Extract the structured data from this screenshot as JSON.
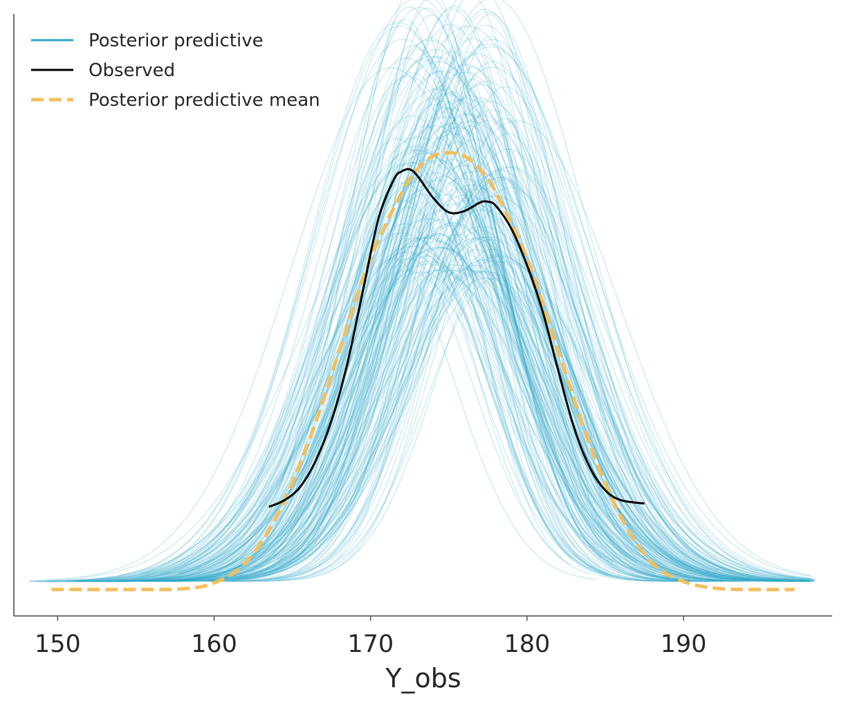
{
  "chart_data": {
    "type": "line",
    "xlabel": "Y_obs",
    "ylabel": "",
    "xlim": [
      147.2,
      199.5
    ],
    "ylim": [
      -0.004,
      0.087
    ],
    "x_ticks": [
      150,
      160,
      170,
      180,
      190
    ],
    "x_tick_labels": [
      "150",
      "160",
      "170",
      "180",
      "190"
    ],
    "y_ticks_shown": false,
    "grid": false,
    "legend_position": "top-left",
    "colors": {
      "posterior_predictive": "#2aa6c6",
      "observed": "#000000",
      "posterior_predictive_mean": "#f5bf5a",
      "axis": "#4a4a4a"
    },
    "legend": [
      {
        "name": "Posterior predictive",
        "style": "solid",
        "color": "#2aa6c6"
      },
      {
        "name": "Observed",
        "style": "solid",
        "color": "#000000"
      },
      {
        "name": "Posterior predictive mean",
        "style": "dashed",
        "color": "#f5bf5a"
      }
    ],
    "series": [
      {
        "name": "Posterior predictive mean",
        "style": "dashed",
        "x": [
          149.6,
          152,
          155,
          158,
          160,
          162,
          164,
          166,
          168,
          170,
          172,
          173,
          174,
          175,
          176,
          177,
          178,
          180,
          182,
          184,
          186,
          188,
          190,
          192,
          194,
          197.1
        ],
        "y": [
          0.0,
          0.0,
          0.0,
          0.0001,
          0.001,
          0.004,
          0.011,
          0.022,
          0.036,
          0.05,
          0.06,
          0.0635,
          0.0655,
          0.066,
          0.0655,
          0.0635,
          0.06,
          0.05,
          0.036,
          0.022,
          0.011,
          0.004,
          0.0012,
          0.0002,
          0.0,
          0.0
        ]
      },
      {
        "name": "Observed",
        "style": "solid",
        "x": [
          163.5,
          164.5,
          165.5,
          166.5,
          167.5,
          168.5,
          169.5,
          170.5,
          171.5,
          172.0,
          172.5,
          173.0,
          174.0,
          175.0,
          176.0,
          177.0,
          177.5,
          178.0,
          179.0,
          180.0,
          181.0,
          182.0,
          183.0,
          184.0,
          185.0,
          186.0,
          187.5
        ],
        "y": [
          0.0125,
          0.0135,
          0.0155,
          0.0195,
          0.0255,
          0.034,
          0.045,
          0.056,
          0.062,
          0.0632,
          0.0635,
          0.0625,
          0.0592,
          0.057,
          0.0572,
          0.0585,
          0.0586,
          0.058,
          0.0545,
          0.049,
          0.042,
          0.033,
          0.0245,
          0.0185,
          0.015,
          0.0135,
          0.013
        ]
      }
    ],
    "posterior_predictive_draws": {
      "count": 200,
      "center_range": [
        172,
        178.5
      ],
      "sigma_range": [
        3.9,
        6.8
      ],
      "peak_density_range": [
        0.046,
        0.088
      ],
      "opacity": 0.2
    }
  }
}
